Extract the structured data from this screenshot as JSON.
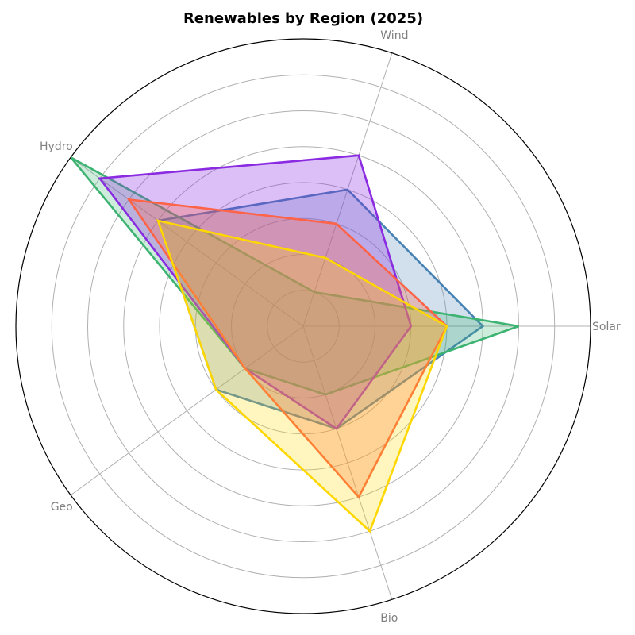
{
  "chart_data": {
    "type": "radar",
    "title": "Renewables by Region (2025)",
    "axes": [
      "Solar",
      "Wind",
      "Hydro",
      "Geo",
      "Bio"
    ],
    "rmax": 8,
    "rings": [
      1,
      2,
      3,
      4,
      5,
      6,
      7,
      8
    ],
    "grid": true,
    "legend": "none",
    "series": [
      {
        "color": "#4682b4",
        "fill_opacity": 0.25,
        "values": [
          5,
          4,
          5,
          3,
          3
        ]
      },
      {
        "color": "#3cb371",
        "fill_opacity": 0.25,
        "values": [
          6,
          1,
          8,
          2,
          2
        ]
      },
      {
        "color": "#8a2be2",
        "fill_opacity": 0.3,
        "values": [
          3,
          5,
          7,
          2,
          3
        ]
      },
      {
        "color": "#ff6347",
        "fill_opacity": 0.3,
        "values": [
          4,
          3,
          6,
          2,
          5
        ]
      },
      {
        "color": "#ffd700",
        "fill_opacity": 0.25,
        "values": [
          4,
          2,
          5,
          3,
          6
        ]
      }
    ]
  }
}
